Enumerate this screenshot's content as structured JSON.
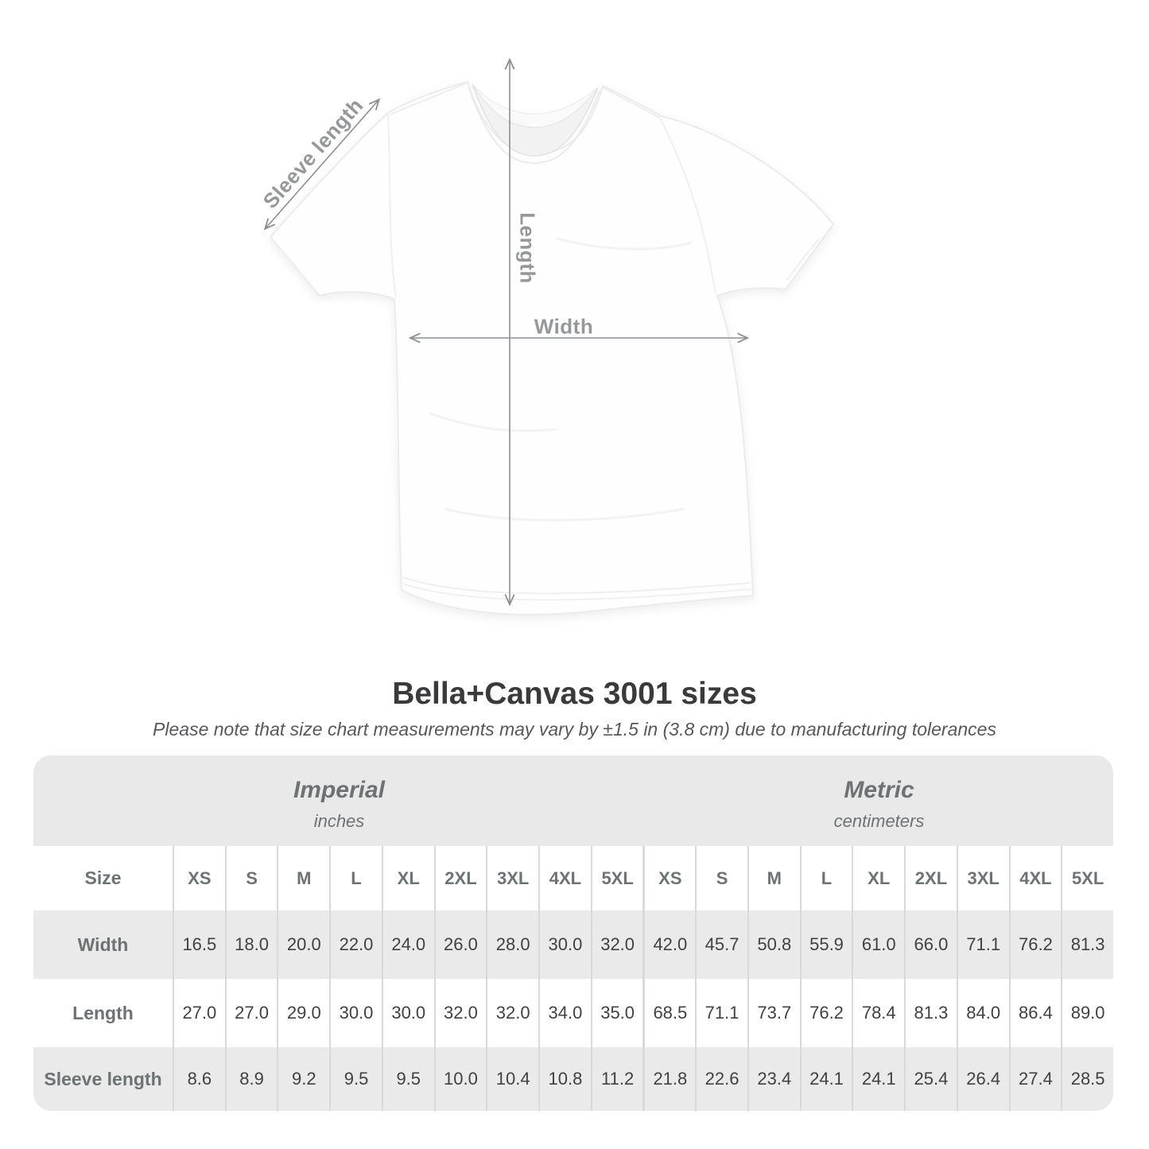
{
  "diagram": {
    "labels": {
      "sleeve": "Sleeve length",
      "length": "Length",
      "width": "Width"
    }
  },
  "title": "Bella+Canvas 3001 sizes",
  "subtitle": "Please note that size chart measurements may vary by ±1.5 in (3.8 cm) due to manufacturing tolerances",
  "table": {
    "size_label": "Size",
    "sections": [
      {
        "name": "Imperial",
        "unit": "inches"
      },
      {
        "name": "Metric",
        "unit": "centimeters"
      }
    ],
    "sizes": [
      "XS",
      "S",
      "M",
      "L",
      "XL",
      "2XL",
      "3XL",
      "4XL",
      "5XL"
    ],
    "rows": [
      {
        "label": "Width",
        "imperial": [
          "16.5",
          "18.0",
          "20.0",
          "22.0",
          "24.0",
          "26.0",
          "28.0",
          "30.0",
          "32.0"
        ],
        "metric": [
          "42.0",
          "45.7",
          "50.8",
          "55.9",
          "61.0",
          "66.0",
          "71.1",
          "76.2",
          "81.3"
        ]
      },
      {
        "label": "Length",
        "imperial": [
          "27.0",
          "27.0",
          "29.0",
          "30.0",
          "30.0",
          "32.0",
          "32.0",
          "34.0",
          "35.0"
        ],
        "metric": [
          "68.5",
          "71.1",
          "73.7",
          "76.2",
          "78.4",
          "81.3",
          "84.0",
          "86.4",
          "89.0"
        ]
      },
      {
        "label": "Sleeve length",
        "imperial": [
          "8.6",
          "8.9",
          "9.2",
          "9.5",
          "9.5",
          "10.0",
          "10.4",
          "10.8",
          "11.2"
        ],
        "metric": [
          "21.8",
          "22.6",
          "23.4",
          "24.1",
          "24.1",
          "25.4",
          "26.4",
          "27.4",
          "28.5"
        ]
      }
    ]
  },
  "chart_data": {
    "type": "table",
    "title": "Bella+Canvas 3001 sizes",
    "sections": [
      "Imperial (inches)",
      "Metric (centimeters)"
    ],
    "columns": [
      "XS",
      "S",
      "M",
      "L",
      "XL",
      "2XL",
      "3XL",
      "4XL",
      "5XL"
    ],
    "rows": [
      {
        "label": "Width",
        "imperial": [
          16.5,
          18.0,
          20.0,
          22.0,
          24.0,
          26.0,
          28.0,
          30.0,
          32.0
        ],
        "metric": [
          42.0,
          45.7,
          50.8,
          55.9,
          61.0,
          66.0,
          71.1,
          76.2,
          81.3
        ]
      },
      {
        "label": "Length",
        "imperial": [
          27.0,
          27.0,
          29.0,
          30.0,
          30.0,
          32.0,
          32.0,
          34.0,
          35.0
        ],
        "metric": [
          68.5,
          71.1,
          73.7,
          76.2,
          78.4,
          81.3,
          84.0,
          86.4,
          89.0
        ]
      },
      {
        "label": "Sleeve length",
        "imperial": [
          8.6,
          8.9,
          9.2,
          9.5,
          9.5,
          10.0,
          10.4,
          10.8,
          11.2
        ],
        "metric": [
          21.8,
          22.6,
          23.4,
          24.1,
          24.1,
          25.4,
          26.4,
          27.4,
          28.5
        ]
      }
    ]
  },
  "colors": {
    "band": "#e9e9e9",
    "rowbg": "#eaeaea",
    "sep": "#d9d9d9",
    "head": "#6d7275",
    "val": "#404143",
    "title": "#3a3a3c",
    "subtitle": "#56585b",
    "label": "#95989a",
    "arrow": "#8c8f92"
  }
}
